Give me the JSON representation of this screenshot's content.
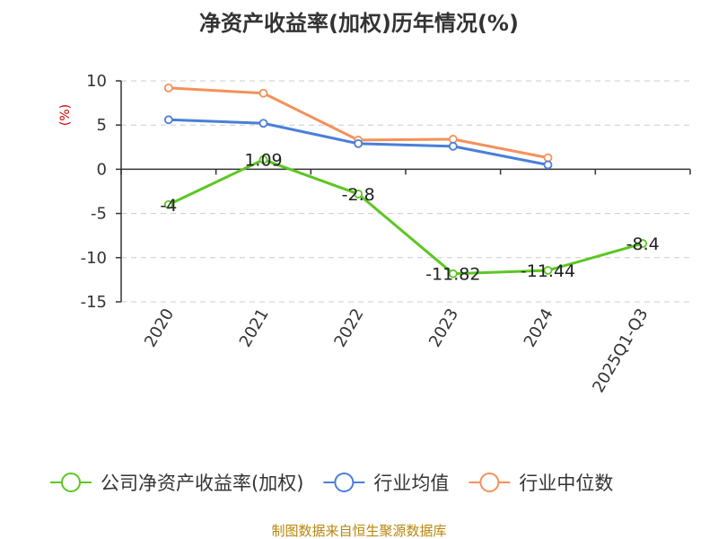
{
  "chart_data": {
    "type": "line",
    "title": "净资产收益率(加权)历年情况(%)",
    "ylabel": "(%)",
    "categories": [
      "2020",
      "2021",
      "2022",
      "2023",
      "2024",
      "2025Q1-Q3"
    ],
    "ylim": [
      -15,
      10
    ],
    "yticks": [
      10,
      5,
      0,
      -5,
      -10,
      -15
    ],
    "grid": true,
    "legend_position": "bottom",
    "series": [
      {
        "name": "公司净资产收益率(加权)",
        "color": "#5dc623",
        "values": [
          -4,
          1.09,
          -2.8,
          -11.82,
          -11.44,
          -8.4
        ],
        "labels": [
          "-4",
          "1.09",
          "-2.8",
          "-11.82",
          "-11.44",
          "-8.4"
        ]
      },
      {
        "name": "行业均值",
        "color": "#4a7fd9",
        "values": [
          5.6,
          5.2,
          2.9,
          2.6,
          0.5,
          null
        ]
      },
      {
        "name": "行业中位数",
        "color": "#f4915b",
        "values": [
          9.2,
          8.6,
          3.3,
          3.4,
          1.3,
          null
        ]
      }
    ],
    "source": "制图数据来自恒生聚源数据库"
  }
}
